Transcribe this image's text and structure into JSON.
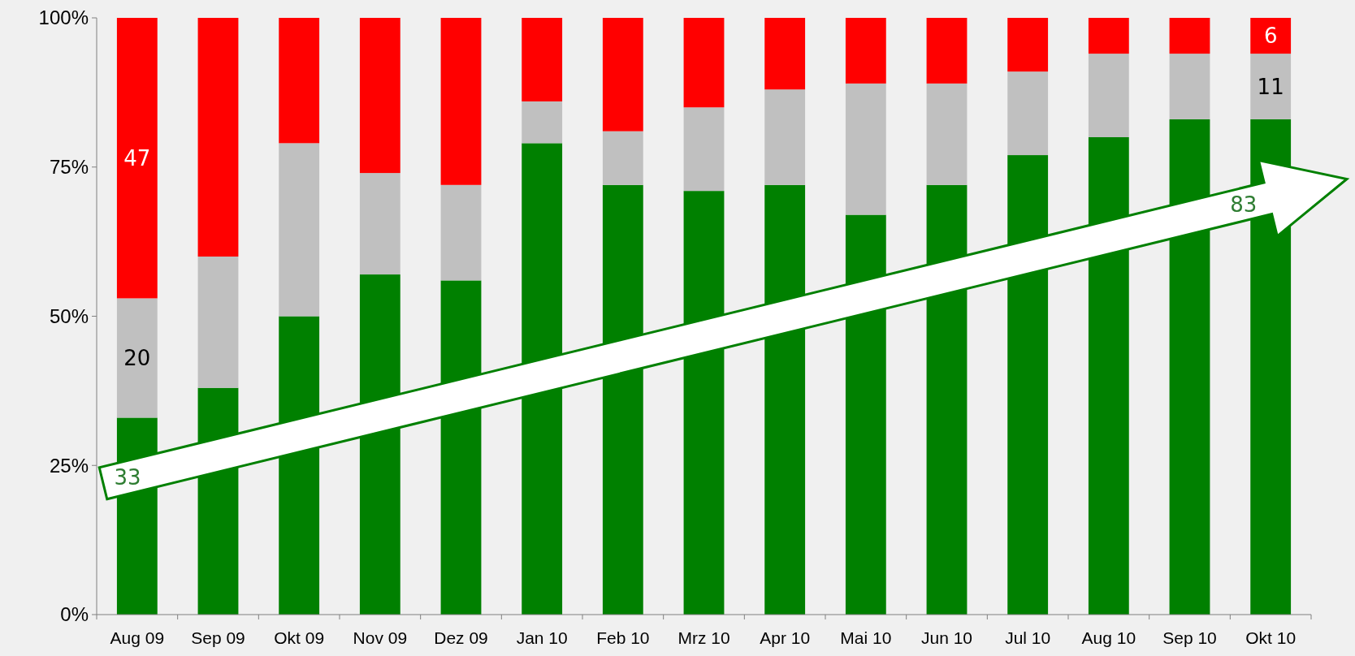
{
  "chart_data": {
    "type": "bar",
    "stacked": true,
    "categories": [
      "Aug 09",
      "Sep 09",
      "Okt 09",
      "Nov 09",
      "Dez 09",
      "Jan 10",
      "Feb 10",
      "Mrz 10",
      "Apr 10",
      "Mai 10",
      "Jun 10",
      "Jul 10",
      "Aug 10",
      "Sep 10",
      "Okt 10"
    ],
    "series": [
      {
        "color": "#008000",
        "values": [
          33,
          38,
          50,
          57,
          56,
          79,
          72,
          71,
          72,
          67,
          72,
          77,
          80,
          83,
          83
        ]
      },
      {
        "color": "#c0c0c0",
        "values": [
          20,
          22,
          29,
          17,
          16,
          7,
          9,
          14,
          16,
          22,
          17,
          14,
          14,
          11,
          11
        ],
        "value_labels": [
          "20",
          null,
          null,
          null,
          null,
          null,
          null,
          null,
          null,
          null,
          null,
          null,
          null,
          null,
          "11"
        ]
      },
      {
        "color": "#ff0000",
        "values": [
          47,
          40,
          21,
          26,
          28,
          14,
          19,
          15,
          12,
          11,
          11,
          9,
          6,
          6,
          6
        ],
        "value_labels": [
          "47",
          null,
          null,
          null,
          null,
          null,
          null,
          null,
          null,
          null,
          null,
          null,
          null,
          null,
          "6"
        ]
      }
    ],
    "ylim": [
      0,
      100
    ],
    "yticks": [
      {
        "value": 0,
        "label": "0%"
      },
      {
        "value": 25,
        "label": "25%"
      },
      {
        "value": 50,
        "label": "50%"
      },
      {
        "value": 75,
        "label": "75%"
      },
      {
        "value": 100,
        "label": "100%"
      }
    ],
    "annotations": [
      "33",
      "83"
    ]
  }
}
